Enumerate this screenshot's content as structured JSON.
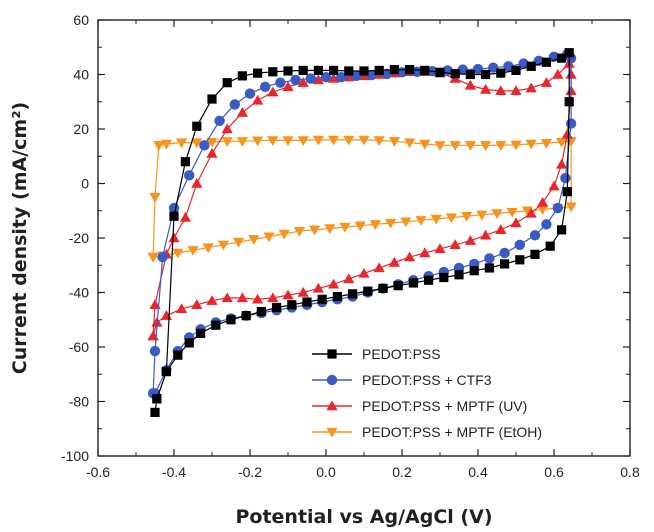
{
  "chart_data": {
    "type": "line",
    "title": "",
    "xlabel": "Potential vs Ag/AgCl (V)",
    "ylabel": "Current density (mA/cm²)",
    "xlim": [
      -0.6,
      0.8
    ],
    "ylim": [
      -100,
      60
    ],
    "xticks": [
      -0.6,
      -0.4,
      -0.2,
      0.0,
      0.2,
      0.4,
      0.6,
      0.8
    ],
    "yticks": [
      -100,
      -80,
      -60,
      -40,
      -20,
      0,
      20,
      40,
      60
    ],
    "xtick_labels": [
      "-0.6",
      "-0.4",
      "-0.2",
      "0.0",
      "0.2",
      "0.4",
      "0.6",
      "0.8"
    ],
    "ytick_labels": [
      "-100",
      "-80",
      "-60",
      "-40",
      "-20",
      "0",
      "20",
      "40",
      "60"
    ],
    "legend_position": "bottom-right",
    "series": [
      {
        "name": "PEDOT:PSS",
        "color": "#000000",
        "marker": "square",
        "points": [
          [
            -0.45,
            -84
          ],
          [
            -0.445,
            -79
          ],
          [
            -0.42,
            -69
          ],
          [
            -0.4,
            -12
          ],
          [
            -0.37,
            8
          ],
          [
            -0.34,
            21
          ],
          [
            -0.3,
            31
          ],
          [
            -0.26,
            37
          ],
          [
            -0.22,
            39.5
          ],
          [
            -0.18,
            40.5
          ],
          [
            -0.14,
            41
          ],
          [
            -0.1,
            41.3
          ],
          [
            -0.06,
            41.5
          ],
          [
            -0.02,
            41.5
          ],
          [
            0.02,
            41.5
          ],
          [
            0.06,
            41.3
          ],
          [
            0.1,
            41.3
          ],
          [
            0.14,
            41.5
          ],
          [
            0.18,
            41.8
          ],
          [
            0.22,
            41.8
          ],
          [
            0.26,
            41.5
          ],
          [
            0.3,
            40.8
          ],
          [
            0.34,
            40.3
          ],
          [
            0.38,
            40
          ],
          [
            0.42,
            40
          ],
          [
            0.46,
            40.5
          ],
          [
            0.5,
            41.5
          ],
          [
            0.54,
            43
          ],
          [
            0.58,
            44.5
          ],
          [
            0.62,
            46
          ],
          [
            0.64,
            48
          ],
          [
            0.64,
            30
          ],
          [
            0.635,
            -3
          ],
          [
            0.62,
            -17
          ],
          [
            0.59,
            -23
          ],
          [
            0.55,
            -26
          ],
          [
            0.51,
            -28
          ],
          [
            0.47,
            -29.5
          ],
          [
            0.43,
            -31
          ],
          [
            0.39,
            -32
          ],
          [
            0.35,
            -33.5
          ],
          [
            0.31,
            -34.5
          ],
          [
            0.27,
            -35.5
          ],
          [
            0.23,
            -36.5
          ],
          [
            0.19,
            -37.5
          ],
          [
            0.15,
            -38.5
          ],
          [
            0.11,
            -39.5
          ],
          [
            0.07,
            -40.5
          ],
          [
            0.03,
            -41.5
          ],
          [
            -0.01,
            -42.5
          ],
          [
            -0.05,
            -43.5
          ],
          [
            -0.09,
            -44.5
          ],
          [
            -0.13,
            -45.5
          ],
          [
            -0.17,
            -47
          ],
          [
            -0.21,
            -48.5
          ],
          [
            -0.25,
            -50
          ],
          [
            -0.29,
            -52
          ],
          [
            -0.33,
            -55
          ],
          [
            -0.36,
            -58.5
          ],
          [
            -0.39,
            -63
          ],
          [
            -0.42,
            -69
          ],
          [
            -0.445,
            -79
          ]
        ],
        "marker_step": 1
      },
      {
        "name": "PEDOT:PSS + CTF3",
        "color": "#3b5bc4",
        "marker": "circle",
        "points": [
          [
            -0.455,
            -77
          ],
          [
            -0.45,
            -61.5
          ],
          [
            -0.43,
            -27
          ],
          [
            -0.4,
            -9
          ],
          [
            -0.36,
            3
          ],
          [
            -0.32,
            14
          ],
          [
            -0.28,
            23
          ],
          [
            -0.24,
            29
          ],
          [
            -0.2,
            33
          ],
          [
            -0.16,
            35.5
          ],
          [
            -0.12,
            37
          ],
          [
            -0.08,
            38
          ],
          [
            -0.04,
            38.5
          ],
          [
            0.0,
            39
          ],
          [
            0.04,
            39
          ],
          [
            0.08,
            39.5
          ],
          [
            0.12,
            39.8
          ],
          [
            0.16,
            40.2
          ],
          [
            0.2,
            40.8
          ],
          [
            0.24,
            41
          ],
          [
            0.28,
            41.2
          ],
          [
            0.32,
            41.5
          ],
          [
            0.36,
            41.8
          ],
          [
            0.4,
            42
          ],
          [
            0.44,
            42.5
          ],
          [
            0.48,
            43
          ],
          [
            0.52,
            44
          ],
          [
            0.56,
            45
          ],
          [
            0.6,
            46.5
          ],
          [
            0.635,
            47.5
          ],
          [
            0.645,
            46
          ],
          [
            0.645,
            22
          ],
          [
            0.63,
            2
          ],
          [
            0.61,
            -9
          ],
          [
            0.58,
            -15
          ],
          [
            0.55,
            -19
          ],
          [
            0.51,
            -22.5
          ],
          [
            0.47,
            -25.5
          ],
          [
            0.43,
            -27.5
          ],
          [
            0.39,
            -29.5
          ],
          [
            0.35,
            -31
          ],
          [
            0.31,
            -32.5
          ],
          [
            0.27,
            -34
          ],
          [
            0.23,
            -35.5
          ],
          [
            0.19,
            -37
          ],
          [
            0.15,
            -38.5
          ],
          [
            0.11,
            -40
          ],
          [
            0.07,
            -41.5
          ],
          [
            0.03,
            -42.5
          ],
          [
            -0.01,
            -43.5
          ],
          [
            -0.05,
            -44.5
          ],
          [
            -0.09,
            -45.5
          ],
          [
            -0.13,
            -46.5
          ],
          [
            -0.17,
            -47.5
          ],
          [
            -0.21,
            -48.5
          ],
          [
            -0.25,
            -49.5
          ],
          [
            -0.29,
            -51
          ],
          [
            -0.33,
            -53.5
          ],
          [
            -0.36,
            -56.5
          ],
          [
            -0.39,
            -61.5
          ],
          [
            -0.42,
            -68.5
          ],
          [
            -0.45,
            -77
          ]
        ],
        "marker_step": 1
      },
      {
        "name": "PEDOT:PSS + MPTF (UV)",
        "color": "#e8262b",
        "marker": "triangle-up",
        "points": [
          [
            -0.455,
            -56
          ],
          [
            -0.45,
            -44.5
          ],
          [
            -0.42,
            -26
          ],
          [
            -0.4,
            -20
          ],
          [
            -0.37,
            -12.5
          ],
          [
            -0.34,
            0
          ],
          [
            -0.3,
            11
          ],
          [
            -0.26,
            20
          ],
          [
            -0.22,
            26
          ],
          [
            -0.18,
            30.5
          ],
          [
            -0.14,
            33.5
          ],
          [
            -0.1,
            35.5
          ],
          [
            -0.06,
            37
          ],
          [
            -0.02,
            38
          ],
          [
            0.02,
            38.5
          ],
          [
            0.06,
            39
          ],
          [
            0.1,
            39.5
          ],
          [
            0.14,
            40
          ],
          [
            0.18,
            40.5
          ],
          [
            0.22,
            41
          ],
          [
            0.26,
            41
          ],
          [
            0.3,
            40.5
          ],
          [
            0.34,
            38.5
          ],
          [
            0.38,
            36
          ],
          [
            0.42,
            34.5
          ],
          [
            0.46,
            34
          ],
          [
            0.5,
            34
          ],
          [
            0.54,
            35
          ],
          [
            0.58,
            37
          ],
          [
            0.61,
            40
          ],
          [
            0.64,
            44
          ],
          [
            0.645,
            40
          ],
          [
            0.645,
            34
          ],
          [
            0.635,
            18
          ],
          [
            0.62,
            7
          ],
          [
            0.6,
            -1
          ],
          [
            0.57,
            -7
          ],
          [
            0.54,
            -11
          ],
          [
            0.5,
            -14.5
          ],
          [
            0.46,
            -17
          ],
          [
            0.42,
            -19
          ],
          [
            0.38,
            -21
          ],
          [
            0.34,
            -22.5
          ],
          [
            0.3,
            -24
          ],
          [
            0.26,
            -25.5
          ],
          [
            0.22,
            -27
          ],
          [
            0.18,
            -29
          ],
          [
            0.14,
            -31
          ],
          [
            0.1,
            -33
          ],
          [
            0.06,
            -35
          ],
          [
            0.02,
            -37
          ],
          [
            -0.02,
            -38.5
          ],
          [
            -0.06,
            -40
          ],
          [
            -0.1,
            -41
          ],
          [
            -0.14,
            -42
          ],
          [
            -0.18,
            -42.5
          ],
          [
            -0.22,
            -42
          ],
          [
            -0.26,
            -42
          ],
          [
            -0.3,
            -43
          ],
          [
            -0.34,
            -44.5
          ],
          [
            -0.38,
            -46
          ],
          [
            -0.42,
            -48.5
          ],
          [
            -0.445,
            -51
          ],
          [
            -0.455,
            -56
          ]
        ],
        "marker_step": 1
      },
      {
        "name": "PEDOT:PSS + MPTF (EtOH)",
        "color": "#f7941d",
        "marker": "triangle-down",
        "points": [
          [
            -0.455,
            -27
          ],
          [
            -0.45,
            -5
          ],
          [
            -0.44,
            14
          ],
          [
            -0.42,
            14.5
          ],
          [
            -0.38,
            15
          ],
          [
            -0.34,
            15
          ],
          [
            -0.3,
            15.2
          ],
          [
            -0.26,
            15.5
          ],
          [
            -0.22,
            15.5
          ],
          [
            -0.18,
            15.7
          ],
          [
            -0.14,
            15.8
          ],
          [
            -0.1,
            15.8
          ],
          [
            -0.06,
            15.8
          ],
          [
            -0.02,
            16
          ],
          [
            0.02,
            16
          ],
          [
            0.06,
            16
          ],
          [
            0.1,
            16
          ],
          [
            0.14,
            15.8
          ],
          [
            0.18,
            15.5
          ],
          [
            0.22,
            15
          ],
          [
            0.26,
            14.5
          ],
          [
            0.3,
            14
          ],
          [
            0.34,
            14
          ],
          [
            0.38,
            14
          ],
          [
            0.42,
            14
          ],
          [
            0.46,
            14
          ],
          [
            0.5,
            14.2
          ],
          [
            0.54,
            14.5
          ],
          [
            0.58,
            14.8
          ],
          [
            0.62,
            15.2
          ],
          [
            0.645,
            15.5
          ],
          [
            0.645,
            -8.5
          ],
          [
            0.61,
            -9
          ],
          [
            0.57,
            -9.5
          ],
          [
            0.53,
            -10
          ],
          [
            0.49,
            -10.5
          ],
          [
            0.45,
            -11
          ],
          [
            0.41,
            -11.5
          ],
          [
            0.37,
            -12
          ],
          [
            0.33,
            -12.5
          ],
          [
            0.29,
            -13
          ],
          [
            0.25,
            -13.5
          ],
          [
            0.21,
            -14
          ],
          [
            0.17,
            -14.5
          ],
          [
            0.13,
            -15
          ],
          [
            0.09,
            -15.5
          ],
          [
            0.05,
            -16
          ],
          [
            0.01,
            -16.5
          ],
          [
            -0.03,
            -17
          ],
          [
            -0.07,
            -17.5
          ],
          [
            -0.11,
            -18.5
          ],
          [
            -0.15,
            -19.5
          ],
          [
            -0.19,
            -20.5
          ],
          [
            -0.23,
            -21.5
          ],
          [
            -0.27,
            -22.5
          ],
          [
            -0.31,
            -23.5
          ],
          [
            -0.35,
            -24.5
          ],
          [
            -0.39,
            -25.5
          ],
          [
            -0.43,
            -26.5
          ],
          [
            -0.455,
            -27
          ]
        ],
        "marker_step": 1
      }
    ]
  }
}
